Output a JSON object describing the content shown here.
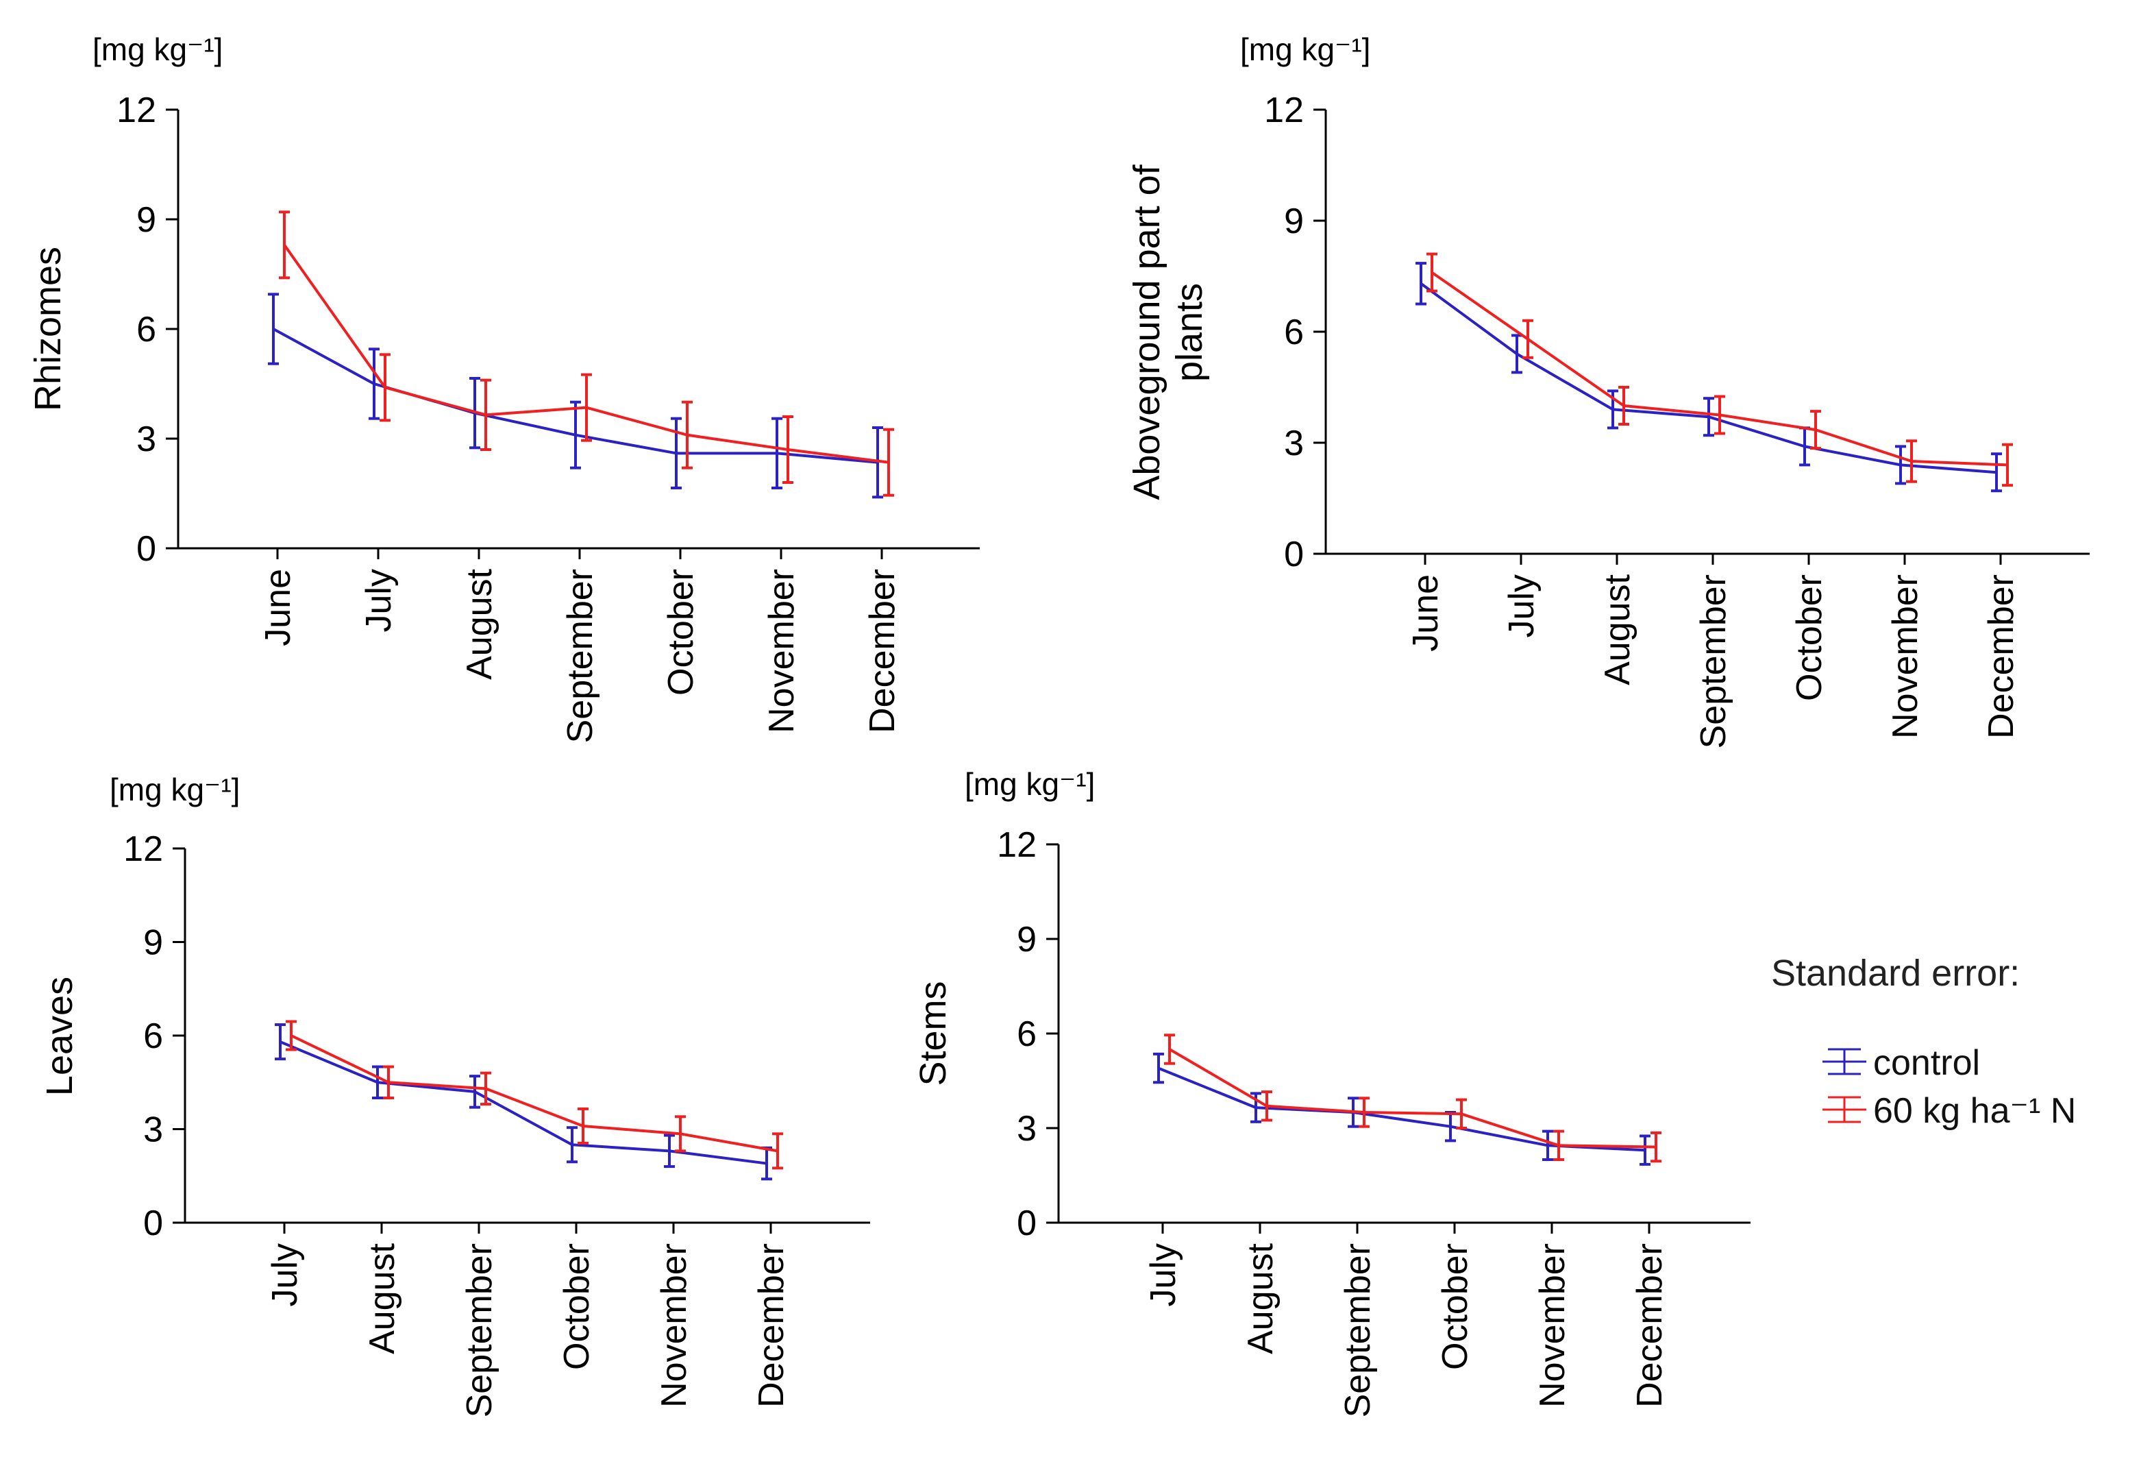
{
  "series_names": [
    "control",
    "60 kg ha⁻¹ N"
  ],
  "colors": {
    "control": "#2a22c4",
    "treatment": "#f02020"
  },
  "legend": {
    "title": "Standard error:",
    "items": [
      {
        "label": "control",
        "color": "#2a22c4"
      },
      {
        "label": "60 kg ha⁻¹ N",
        "color": "#f02020"
      }
    ]
  },
  "chart_data": [
    {
      "type": "line",
      "panel": "Rhizomes",
      "unit_label": "[mg kg⁻¹]",
      "ylabel": [
        "Rhizomes"
      ],
      "categories": [
        "June",
        "July",
        "August",
        "September",
        "October",
        "November",
        "December"
      ],
      "ylim": [
        0,
        12
      ],
      "yticks": [
        0,
        3,
        6,
        9,
        12
      ],
      "series": [
        {
          "name": "control",
          "values": [
            6.0,
            4.5,
            3.7,
            3.1,
            2.6,
            2.6,
            2.35
          ],
          "errors": [
            0.95,
            0.95,
            0.95,
            0.9,
            0.95,
            0.95,
            0.95
          ]
        },
        {
          "name": "60 kg ha⁻¹ N",
          "values": [
            8.3,
            4.4,
            3.65,
            3.85,
            3.1,
            2.7,
            2.35
          ],
          "errors": [
            0.9,
            0.9,
            0.95,
            0.9,
            0.9,
            0.9,
            0.9
          ]
        }
      ]
    },
    {
      "type": "line",
      "panel": "Aboveground part of plants",
      "unit_label": "[mg kg⁻¹]",
      "ylabel": [
        "Aboveground part of",
        "plants"
      ],
      "categories": [
        "June",
        "July",
        "August",
        "September",
        "October",
        "November",
        "December"
      ],
      "ylim": [
        0,
        12
      ],
      "yticks": [
        0,
        3,
        6,
        9,
        12
      ],
      "series": [
        {
          "name": "control",
          "values": [
            7.3,
            5.4,
            3.9,
            3.7,
            2.9,
            2.4,
            2.2
          ],
          "errors": [
            0.55,
            0.5,
            0.5,
            0.5,
            0.5,
            0.5,
            0.5
          ]
        },
        {
          "name": "60 kg ha⁻¹ N",
          "values": [
            7.6,
            5.8,
            4.0,
            3.75,
            3.35,
            2.5,
            2.4
          ],
          "errors": [
            0.5,
            0.5,
            0.5,
            0.5,
            0.5,
            0.55,
            0.55
          ]
        }
      ]
    },
    {
      "type": "line",
      "panel": "Leaves",
      "unit_label": "[mg kg⁻¹]",
      "ylabel": [
        "Leaves"
      ],
      "categories": [
        "July",
        "August",
        "September",
        "October",
        "November",
        "December"
      ],
      "ylim": [
        0,
        12
      ],
      "yticks": [
        0,
        3,
        6,
        9,
        12
      ],
      "series": [
        {
          "name": "control",
          "values": [
            5.8,
            4.5,
            4.2,
            2.5,
            2.3,
            1.9
          ],
          "errors": [
            0.55,
            0.5,
            0.5,
            0.55,
            0.5,
            0.5
          ]
        },
        {
          "name": "60 kg ha⁻¹ N",
          "values": [
            6.0,
            4.5,
            4.3,
            3.1,
            2.85,
            2.3
          ],
          "errors": [
            0.45,
            0.5,
            0.5,
            0.55,
            0.55,
            0.55
          ]
        }
      ]
    },
    {
      "type": "line",
      "panel": "Stems",
      "unit_label": "[mg kg⁻¹]",
      "ylabel": [
        "Stems"
      ],
      "categories": [
        "July",
        "August",
        "September",
        "October",
        "November",
        "December"
      ],
      "ylim": [
        0,
        12
      ],
      "yticks": [
        0,
        3,
        6,
        9,
        12
      ],
      "series": [
        {
          "name": "control",
          "values": [
            4.9,
            3.65,
            3.5,
            3.05,
            2.45,
            2.3
          ],
          "errors": [
            0.45,
            0.45,
            0.45,
            0.45,
            0.45,
            0.45
          ]
        },
        {
          "name": "60 kg ha⁻¹ N",
          "values": [
            5.5,
            3.7,
            3.5,
            3.45,
            2.45,
            2.4
          ],
          "errors": [
            0.45,
            0.45,
            0.45,
            0.45,
            0.45,
            0.45
          ]
        }
      ]
    }
  ]
}
